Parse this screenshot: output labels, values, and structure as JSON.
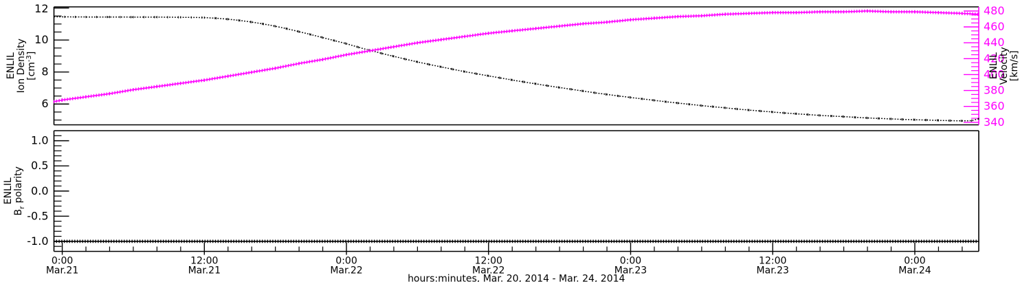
{
  "figure": {
    "description": "ENLIL model time series, two stacked panels",
    "background": "#ffffff",
    "accent_magenta": "#ff00ff",
    "line_black": "#000000"
  },
  "chart_data": {
    "type": "line",
    "x_axis": {
      "xlabel": "hours:minutes, Mar. 20, 2014 - Mar. 24, 2014",
      "xlim_hours": [
        -0.7,
        77.4
      ],
      "minor_step_hours": 2,
      "major_ticks": [
        {
          "hours": 0,
          "time": "0:00",
          "date": "Mar.21"
        },
        {
          "hours": 12,
          "time": "12:00",
          "date": "Mar.21"
        },
        {
          "hours": 24,
          "time": "0:00",
          "date": "Mar.22"
        },
        {
          "hours": 36,
          "time": "12:00",
          "date": "Mar.22"
        },
        {
          "hours": 48,
          "time": "0:00",
          "date": "Mar.23"
        },
        {
          "hours": 60,
          "time": "12:00",
          "date": "Mar.23"
        },
        {
          "hours": 72,
          "time": "0:00",
          "date": "Mar.24"
        }
      ]
    },
    "panels": [
      {
        "name": "density-velocity-panel",
        "left_axis": {
          "label_lines": [
            [
              {
                "t": "ENLIL"
              }
            ],
            [
              {
                "t": "Ion Density"
              }
            ],
            [
              {
                "t": "[cm"
              },
              {
                "t": "-3",
                "sup": 1
              },
              {
                "t": "]"
              }
            ]
          ],
          "lim": [
            4.7,
            12.07
          ],
          "major_ticks": [
            {
              "v": 6,
              "label": "6"
            },
            {
              "v": 8,
              "label": "8"
            },
            {
              "v": 10,
              "label": "10"
            },
            {
              "v": 12,
              "label": "12"
            }
          ],
          "minor_step": 0.5,
          "color": "#000000"
        },
        "right_axis": {
          "label_lines": [
            [
              {
                "t": "ENLIL"
              }
            ],
            [
              {
                "t": "Velocity"
              }
            ],
            [
              {
                "t": "[km/s]"
              }
            ]
          ],
          "lim": [
            336.8,
            485.2
          ],
          "major_ticks": [
            {
              "v": 340,
              "label": "340"
            },
            {
              "v": 360,
              "label": "360"
            },
            {
              "v": 380,
              "label": "380"
            },
            {
              "v": 400,
              "label": "400"
            },
            {
              "v": 420,
              "label": "420"
            },
            {
              "v": 440,
              "label": "440"
            },
            {
              "v": 460,
              "label": "460"
            },
            {
              "v": 480,
              "label": "480"
            }
          ],
          "minor_step": 5,
          "color": "#ff00ff",
          "title_color": "#000000"
        },
        "series": [
          {
            "name": "ion-density",
            "axis": "left",
            "color": "#000000",
            "style": "dotted",
            "points": [
              [
                -0.7,
                11.45
              ],
              [
                2,
                11.44
              ],
              [
                4,
                11.44
              ],
              [
                6,
                11.43
              ],
              [
                8,
                11.43
              ],
              [
                10,
                11.42
              ],
              [
                12,
                11.4
              ],
              [
                13,
                11.36
              ],
              [
                14,
                11.3
              ],
              [
                15,
                11.22
              ],
              [
                16,
                11.12
              ],
              [
                17,
                11.0
              ],
              [
                18,
                10.86
              ],
              [
                19,
                10.7
              ],
              [
                20,
                10.52
              ],
              [
                21,
                10.34
              ],
              [
                22,
                10.15
              ],
              [
                23,
                9.96
              ],
              [
                24,
                9.77
              ],
              [
                25,
                9.55
              ],
              [
                26,
                9.35
              ],
              [
                27,
                9.16
              ],
              [
                28,
                8.98
              ],
              [
                29,
                8.8
              ],
              [
                30,
                8.63
              ],
              [
                31,
                8.47
              ],
              [
                32,
                8.32
              ],
              [
                33,
                8.17
              ],
              [
                34,
                8.02
              ],
              [
                35,
                7.89
              ],
              [
                36,
                7.76
              ],
              [
                37,
                7.63
              ],
              [
                38,
                7.5
              ],
              [
                39,
                7.38
              ],
              [
                40,
                7.26
              ],
              [
                41,
                7.14
              ],
              [
                42,
                7.03
              ],
              [
                43,
                6.92
              ],
              [
                44,
                6.81
              ],
              [
                45,
                6.7
              ],
              [
                46,
                6.6
              ],
              [
                47,
                6.5
              ],
              [
                48,
                6.41
              ],
              [
                49,
                6.32
              ],
              [
                50,
                6.23
              ],
              [
                51,
                6.14
              ],
              [
                52,
                6.06
              ],
              [
                53,
                5.98
              ],
              [
                54,
                5.9
              ],
              [
                55,
                5.83
              ],
              [
                56,
                5.76
              ],
              [
                57,
                5.69
              ],
              [
                58,
                5.62
              ],
              [
                59,
                5.56
              ],
              [
                60,
                5.5
              ],
              [
                61,
                5.44
              ],
              [
                62,
                5.39
              ],
              [
                63,
                5.34
              ],
              [
                64,
                5.29
              ],
              [
                65,
                5.25
              ],
              [
                66,
                5.21
              ],
              [
                67,
                5.17
              ],
              [
                68,
                5.13
              ],
              [
                69,
                5.1
              ],
              [
                70,
                5.07
              ],
              [
                71,
                5.04
              ],
              [
                72,
                5.02
              ],
              [
                73,
                5.0
              ],
              [
                74,
                4.98
              ],
              [
                75,
                4.96
              ],
              [
                76,
                4.95
              ],
              [
                76.8,
                4.96
              ],
              [
                77.4,
                5.08
              ]
            ]
          },
          {
            "name": "velocity",
            "axis": "right",
            "color": "#ff00ff",
            "style": "plus",
            "points": [
              [
                -0.7,
                366
              ],
              [
                0,
                368
              ],
              [
                2,
                372
              ],
              [
                4,
                376
              ],
              [
                6,
                381
              ],
              [
                8,
                385
              ],
              [
                10,
                389
              ],
              [
                12,
                393
              ],
              [
                14,
                398
              ],
              [
                16,
                403
              ],
              [
                18,
                408
              ],
              [
                20,
                414
              ],
              [
                22,
                419
              ],
              [
                24,
                425
              ],
              [
                26,
                430
              ],
              [
                28,
                435
              ],
              [
                30,
                440
              ],
              [
                32,
                444
              ],
              [
                34,
                448
              ],
              [
                36,
                452
              ],
              [
                38,
                455
              ],
              [
                40,
                458
              ],
              [
                42,
                461
              ],
              [
                44,
                464
              ],
              [
                46,
                466
              ],
              [
                48,
                469
              ],
              [
                50,
                471
              ],
              [
                52,
                473
              ],
              [
                54,
                474
              ],
              [
                56,
                476
              ],
              [
                58,
                477
              ],
              [
                60,
                478
              ],
              [
                62,
                478
              ],
              [
                64,
                479
              ],
              [
                66,
                479
              ],
              [
                68,
                480
              ],
              [
                70,
                479
              ],
              [
                72,
                479
              ],
              [
                74,
                478
              ],
              [
                76,
                477
              ],
              [
                77.4,
                476
              ]
            ]
          }
        ]
      },
      {
        "name": "polarity-panel",
        "left_axis": {
          "label_lines": [
            [
              {
                "t": "ENLIL"
              }
            ],
            [
              {
                "t": "B"
              },
              {
                "t": "r",
                "sub": 1
              },
              {
                "t": " polarity"
              }
            ]
          ],
          "lim": [
            -1.2,
            1.2
          ],
          "major_ticks": [
            {
              "v": 1.0,
              "label": "1.0"
            },
            {
              "v": 0.5,
              "label": "0.5"
            },
            {
              "v": 0.0,
              "label": "0.0"
            },
            {
              "v": -0.5,
              "label": "-0.5"
            },
            {
              "v": -1.0,
              "label": "-1.0"
            }
          ],
          "minor_step": 0.1,
          "color": "#000000"
        },
        "series": [
          {
            "name": "br-polarity",
            "axis": "left",
            "color": "#000000",
            "style": "plus",
            "points": [
              [
                -0.7,
                -1.0
              ],
              [
                77.4,
                -1.0
              ]
            ]
          }
        ]
      }
    ]
  }
}
